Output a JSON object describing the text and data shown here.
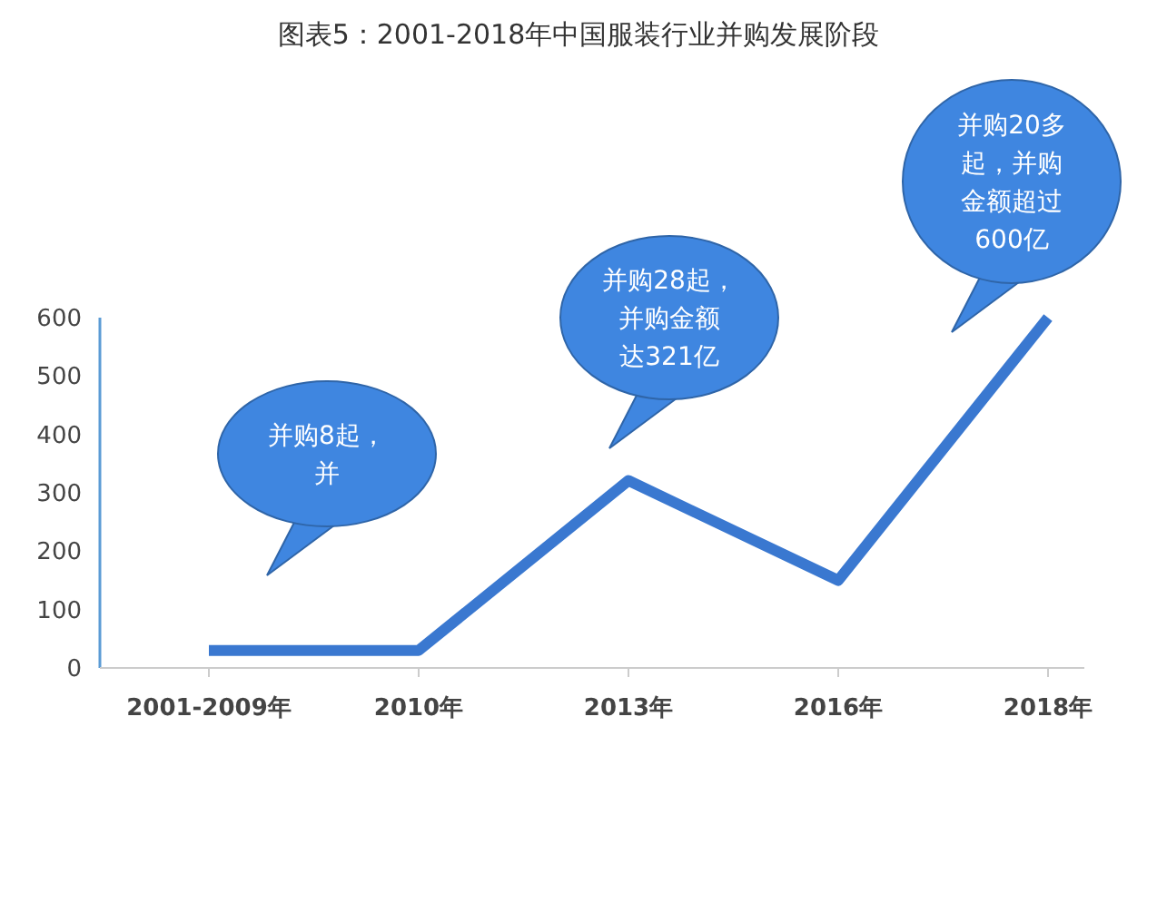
{
  "chart_data": {
    "type": "line",
    "title": "图表5：2001-2018年中国服装行业并购发展阶段",
    "categories": [
      "2001-2009年",
      "2010年",
      "2013年",
      "2016年",
      "2018年"
    ],
    "values": [
      30,
      30,
      321,
      150,
      600
    ],
    "color": "#3a78d0",
    "ylim": [
      0,
      600
    ],
    "yticks": [
      0,
      100,
      200,
      300,
      400,
      500,
      600
    ],
    "grid": false,
    "marker": "none",
    "annotations": [
      "并购8起，并",
      "并购28起，并购金额达321亿",
      "并购20多起，并购金额超过600亿"
    ]
  }
}
